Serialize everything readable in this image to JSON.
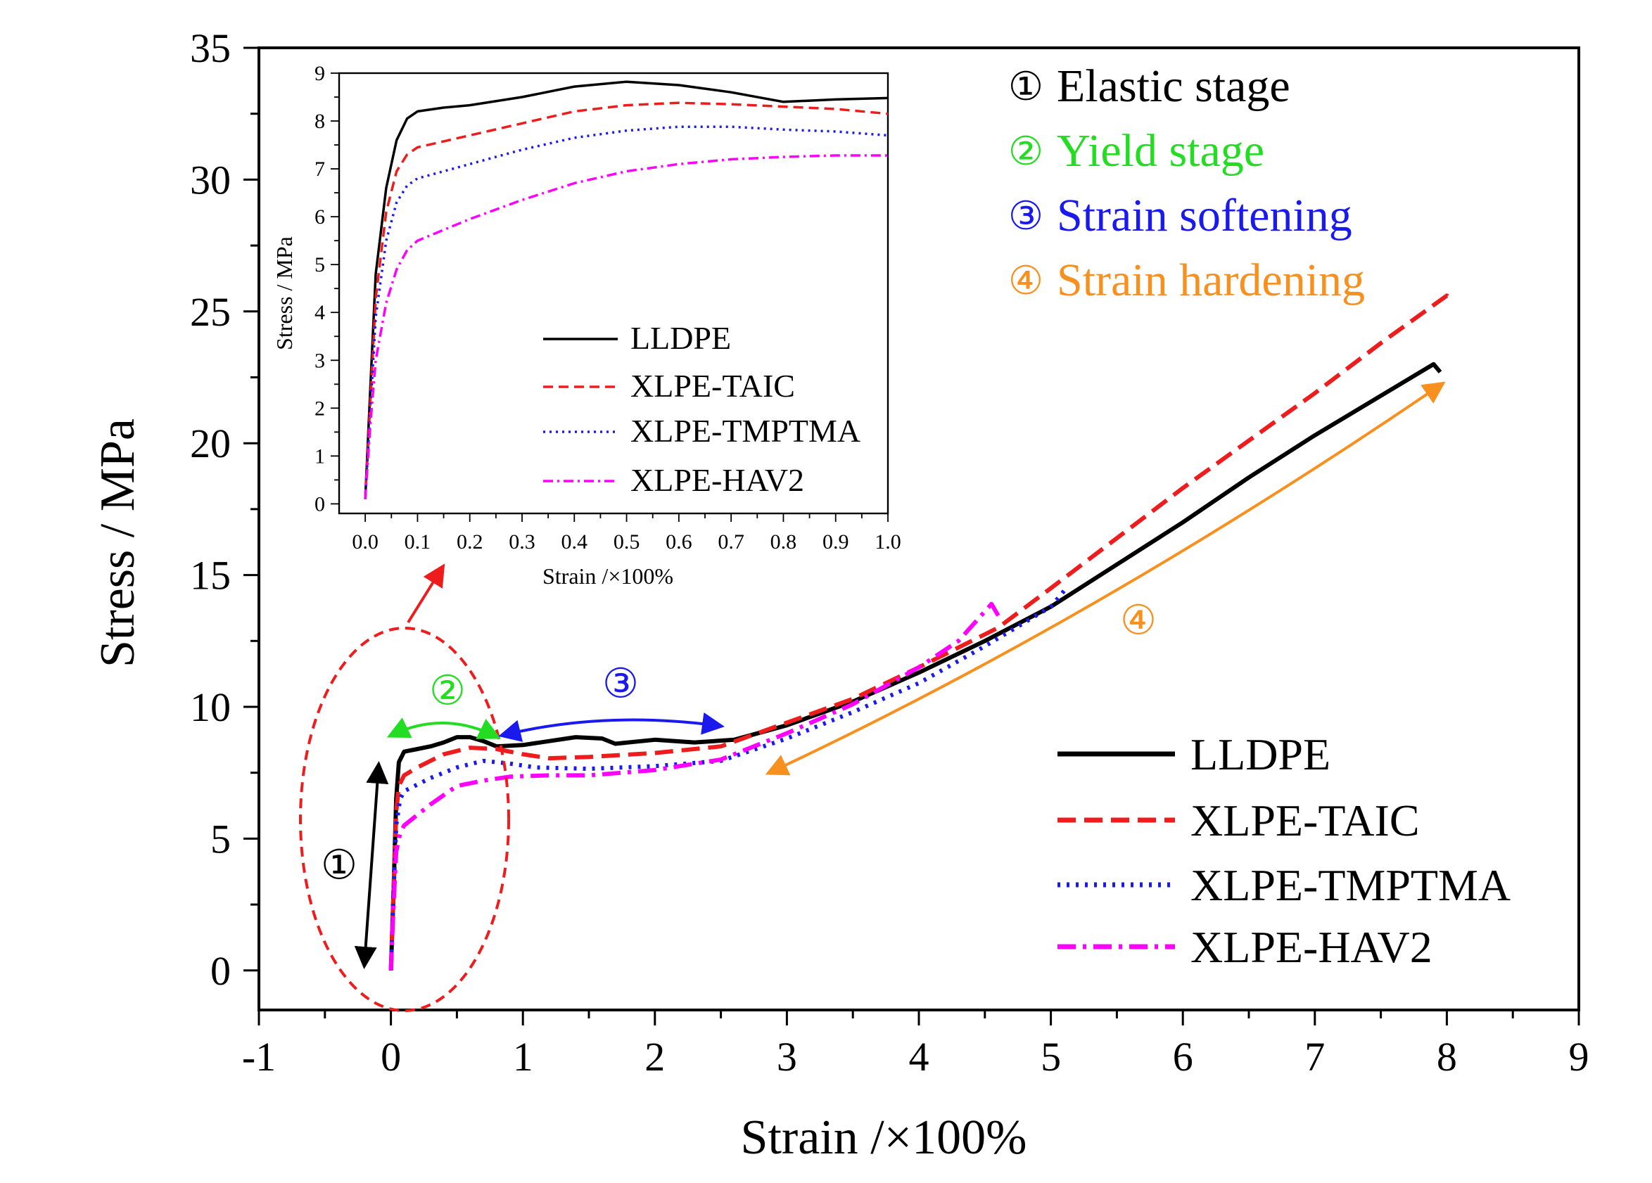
{
  "chart_data": {
    "type": "line",
    "main": {
      "xlabel": "Strain /×100%",
      "ylabel": "Stress / MPa",
      "xlim": [
        -1,
        9
      ],
      "ylim": [
        -1.5,
        35
      ],
      "xticks": [
        "-1",
        "0",
        "1",
        "2",
        "3",
        "4",
        "5",
        "6",
        "7",
        "8",
        "9"
      ],
      "yticks": [
        "0",
        "5",
        "10",
        "15",
        "20",
        "25",
        "30",
        "35"
      ],
      "legend_position": "bottom-right",
      "grid": false,
      "series": [
        {
          "name": "LLDPE",
          "color": "#000000",
          "style": "solid",
          "points": [
            [
              0,
              0
            ],
            [
              0.02,
              3
            ],
            [
              0.04,
              6.5
            ],
            [
              0.06,
              7.9
            ],
            [
              0.1,
              8.3
            ],
            [
              0.2,
              8.4
            ],
            [
              0.3,
              8.5
            ],
            [
              0.4,
              8.65
            ],
            [
              0.5,
              8.85
            ],
            [
              0.6,
              8.85
            ],
            [
              0.7,
              8.7
            ],
            [
              0.8,
              8.5
            ],
            [
              1.0,
              8.55
            ],
            [
              1.2,
              8.7
            ],
            [
              1.4,
              8.85
            ],
            [
              1.6,
              8.8
            ],
            [
              1.7,
              8.6
            ],
            [
              2.0,
              8.75
            ],
            [
              2.3,
              8.65
            ],
            [
              2.6,
              8.75
            ],
            [
              3.0,
              9.3
            ],
            [
              3.5,
              10.2
            ],
            [
              4.0,
              11.3
            ],
            [
              4.5,
              12.5
            ],
            [
              5.0,
              13.8
            ],
            [
              5.5,
              15.4
            ],
            [
              6.0,
              17.0
            ],
            [
              6.5,
              18.7
            ],
            [
              7.0,
              20.3
            ],
            [
              7.5,
              21.8
            ],
            [
              7.9,
              23.0
            ],
            [
              7.95,
              22.7
            ]
          ]
        },
        {
          "name": "XLPE-TAIC",
          "color": "#ee1c1c",
          "style": "dashed",
          "points": [
            [
              0,
              0
            ],
            [
              0.02,
              3
            ],
            [
              0.04,
              6.0
            ],
            [
              0.06,
              7.0
            ],
            [
              0.1,
              7.4
            ],
            [
              0.2,
              7.7
            ],
            [
              0.4,
              8.2
            ],
            [
              0.6,
              8.45
            ],
            [
              0.8,
              8.4
            ],
            [
              1.0,
              8.2
            ],
            [
              1.2,
              8.05
            ],
            [
              1.5,
              8.1
            ],
            [
              2.0,
              8.25
            ],
            [
              2.5,
              8.5
            ],
            [
              3.0,
              9.4
            ],
            [
              3.5,
              10.3
            ],
            [
              4.0,
              11.5
            ],
            [
              4.6,
              13.0
            ],
            [
              5.0,
              14.5
            ],
            [
              5.5,
              16.4
            ],
            [
              6.0,
              18.3
            ],
            [
              6.5,
              20.1
            ],
            [
              7.0,
              21.9
            ],
            [
              7.5,
              23.8
            ],
            [
              8.0,
              25.6
            ],
            [
              8.03,
              25.3
            ]
          ]
        },
        {
          "name": "XLPE-TMPTMA",
          "color": "#1a1aee",
          "style": "dotted",
          "points": [
            [
              0,
              0
            ],
            [
              0.02,
              3
            ],
            [
              0.04,
              5.5
            ],
            [
              0.07,
              6.5
            ],
            [
              0.1,
              6.8
            ],
            [
              0.3,
              7.3
            ],
            [
              0.5,
              7.7
            ],
            [
              0.7,
              7.95
            ],
            [
              0.9,
              7.85
            ],
            [
              1.1,
              7.7
            ],
            [
              1.5,
              7.65
            ],
            [
              2.0,
              7.75
            ],
            [
              2.5,
              7.95
            ],
            [
              3.0,
              8.8
            ],
            [
              3.5,
              9.8
            ],
            [
              4.0,
              10.9
            ],
            [
              4.5,
              12.3
            ],
            [
              5.0,
              13.8
            ],
            [
              5.1,
              14.4
            ]
          ]
        },
        {
          "name": "XLPE-HAV2",
          "color": "#ff00ff",
          "style": "dash-dot",
          "points": [
            [
              0,
              0
            ],
            [
              0.02,
              2.5
            ],
            [
              0.04,
              4.5
            ],
            [
              0.07,
              5.2
            ],
            [
              0.1,
              5.5
            ],
            [
              0.3,
              6.3
            ],
            [
              0.5,
              7.0
            ],
            [
              0.7,
              7.2
            ],
            [
              0.9,
              7.35
            ],
            [
              1.2,
              7.4
            ],
            [
              1.5,
              7.4
            ],
            [
              2.0,
              7.6
            ],
            [
              2.5,
              8.0
            ],
            [
              3.0,
              9.0
            ],
            [
              3.5,
              10.1
            ],
            [
              4.0,
              11.5
            ],
            [
              4.3,
              12.5
            ],
            [
              4.55,
              13.9
            ],
            [
              4.62,
              13.3
            ]
          ]
        }
      ]
    },
    "inset": {
      "xlabel": "Strain /×100%",
      "ylabel": "Stress / MPa",
      "xlim": [
        -0.05,
        1.0
      ],
      "ylim": [
        -0.2,
        9
      ],
      "xticks": [
        "0.0",
        "0.1",
        "0.2",
        "0.3",
        "0.4",
        "0.5",
        "0.6",
        "0.7",
        "0.8",
        "0.9",
        "1.0"
      ],
      "yticks": [
        "0",
        "1",
        "2",
        "3",
        "4",
        "5",
        "6",
        "7",
        "8",
        "9"
      ],
      "legend_position": "center",
      "series_from_main": true
    },
    "annotations": {
      "stage_titles": [
        {
          "symbol": "①",
          "label": "Elastic stage",
          "color": "#000000"
        },
        {
          "symbol": "②",
          "label": "Yield stage",
          "color": "#22dd22"
        },
        {
          "symbol": "③",
          "label": "Strain softening",
          "color": "#1a1aee"
        },
        {
          "symbol": "④",
          "label": "Strain hardening",
          "color": "#f7901e"
        }
      ],
      "markers": [
        {
          "symbol": "①",
          "color": "#000000"
        },
        {
          "symbol": "②",
          "color": "#22dd22"
        },
        {
          "symbol": "③",
          "color": "#1a1aee"
        },
        {
          "symbol": "④",
          "color": "#f7901e"
        }
      ]
    }
  }
}
